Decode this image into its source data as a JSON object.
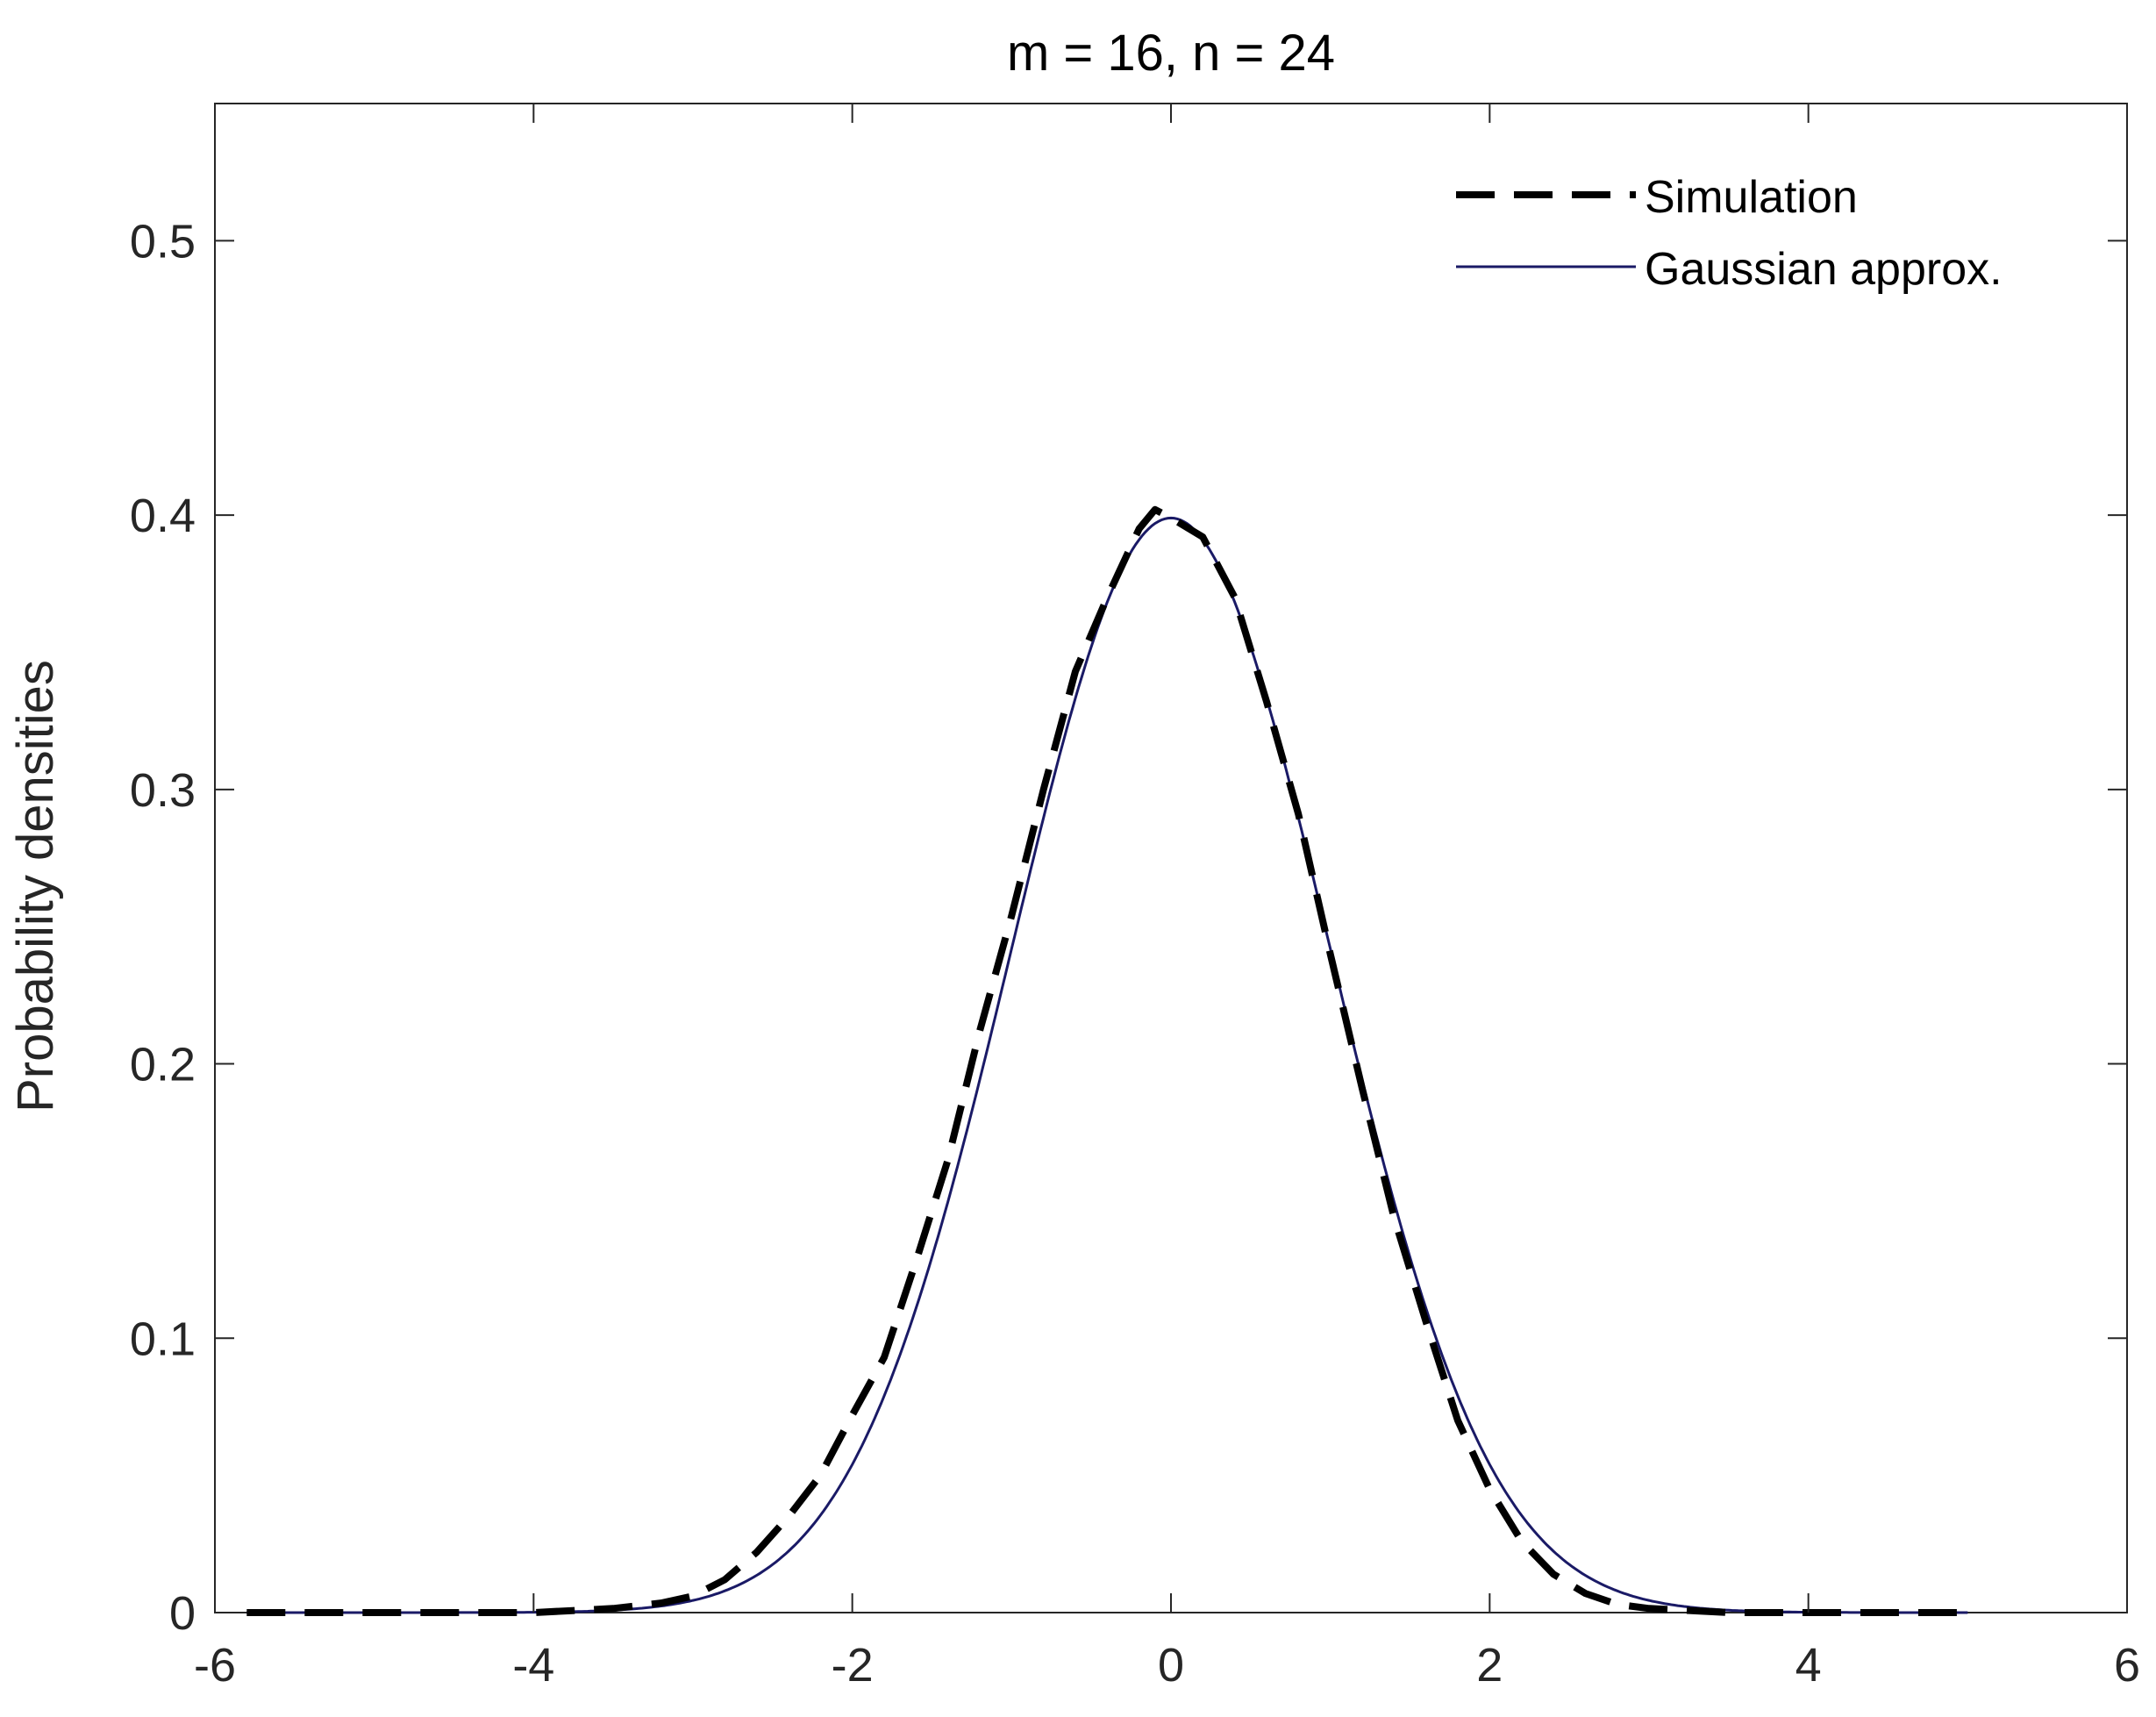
{
  "chart_data": {
    "type": "line",
    "title": "m = 16, n = 24",
    "xlabel": "",
    "ylabel": "Probability densities",
    "xlim": [
      -6,
      6
    ],
    "ylim": [
      0,
      0.55
    ],
    "xticks": [
      -6,
      -4,
      -2,
      0,
      2,
      4,
      6
    ],
    "yticks": [
      0,
      0.1,
      0.2,
      0.3,
      0.4,
      0.5
    ],
    "xtick_labels": [
      "-6",
      "-4",
      "-2",
      "0",
      "2",
      "4",
      "6"
    ],
    "ytick_labels": [
      "0",
      "0.1",
      "0.2",
      "0.3",
      "0.4",
      "0.5"
    ],
    "grid": false,
    "legend": {
      "placement": "top-right",
      "entries": [
        "Simulation",
        "Gaussian approx."
      ]
    },
    "series": [
      {
        "name": "Simulation",
        "style": "dashed",
        "color": "#000000",
        "x": [
          -5.8,
          -5.0,
          -4.0,
          -3.5,
          -3.2,
          -3.0,
          -2.8,
          -2.6,
          -2.4,
          -2.2,
          -2.0,
          -1.8,
          -1.6,
          -1.4,
          -1.2,
          -1.0,
          -0.8,
          -0.6,
          -0.4,
          -0.2,
          -0.1,
          0.0,
          0.2,
          0.4,
          0.6,
          0.8,
          1.0,
          1.2,
          1.4,
          1.6,
          1.8,
          2.0,
          2.2,
          2.4,
          2.6,
          2.8,
          3.0,
          3.5,
          4.0,
          5.0
        ],
        "y": [
          0.0,
          0.0,
          0.0,
          0.0015,
          0.0035,
          0.006,
          0.012,
          0.022,
          0.035,
          0.05,
          0.072,
          0.093,
          0.128,
          0.165,
          0.212,
          0.254,
          0.3,
          0.343,
          0.37,
          0.395,
          0.402,
          0.399,
          0.392,
          0.37,
          0.332,
          0.291,
          0.24,
          0.191,
          0.144,
          0.106,
          0.07,
          0.045,
          0.026,
          0.014,
          0.007,
          0.003,
          0.0015,
          0.0,
          0.0,
          0.0
        ]
      },
      {
        "name": "Gaussian approx.",
        "style": "solid",
        "color": "#1a1a66",
        "mean": 0,
        "std": 1
      }
    ]
  }
}
